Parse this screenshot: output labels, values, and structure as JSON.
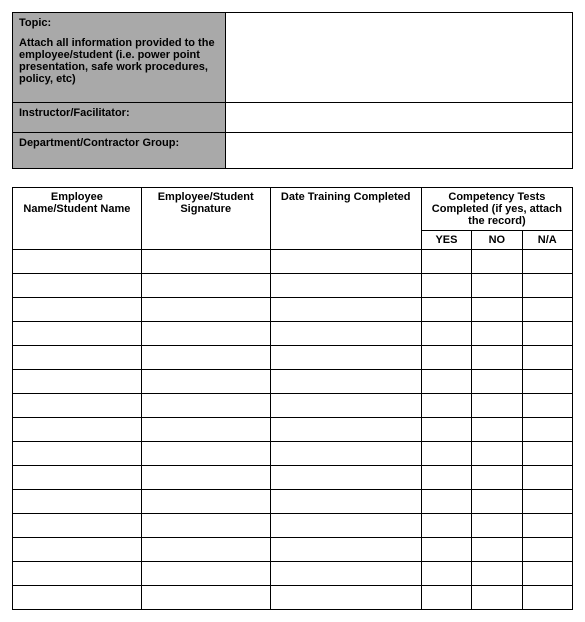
{
  "info": {
    "topic_label": "Topic:",
    "attach_text": "Attach all information provided to the employee/student (i.e. power point presentation, safe work procedures, policy, etc)",
    "instructor_label": "Instructor/Facilitator:",
    "department_label": "Department/Contractor Group:",
    "topic_value": "",
    "instructor_value": "",
    "department_value": ""
  },
  "table": {
    "headers": {
      "name": "Employee Name/Student Name",
      "signature": "Employee/Student Signature",
      "date": "Date Training Completed",
      "competency": "Competency Tests Completed (if yes, attach the record)",
      "yes": "YES",
      "no": "NO",
      "na": "N/A"
    },
    "row_count": 15,
    "columns": {
      "name_width": "23%",
      "sig_width": "23%",
      "date_width": "27%",
      "sub_width": "9%"
    },
    "colors": {
      "label_bg": "#a9a9a9",
      "border": "#000000",
      "page_bg": "#ffffff"
    }
  }
}
